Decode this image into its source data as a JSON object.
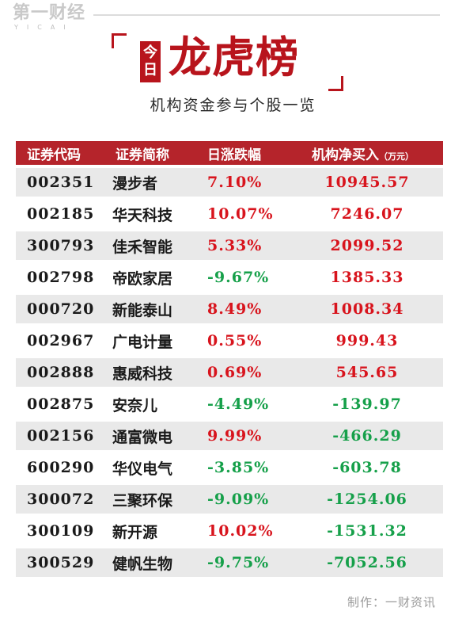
{
  "brand": {
    "name": "第一财经",
    "sub": "YICAI"
  },
  "header": {
    "badge_top": "今",
    "badge_bottom": "日",
    "title": "龙虎榜",
    "subtitle": "机构资金参与个股一览"
  },
  "table": {
    "columns": [
      "证券代码",
      "证券简称",
      "日涨跌幅",
      "机构净买入"
    ],
    "unit": "（万元）",
    "rows": [
      {
        "code": "002351",
        "name": "漫步者",
        "change": "7.10%",
        "net": "10945.57"
      },
      {
        "code": "002185",
        "name": "华天科技",
        "change": "10.07%",
        "net": "7246.07"
      },
      {
        "code": "300793",
        "name": "佳禾智能",
        "change": "5.33%",
        "net": "2099.52"
      },
      {
        "code": "002798",
        "name": "帝欧家居",
        "change": "-9.67%",
        "net": "1385.33"
      },
      {
        "code": "000720",
        "name": "新能泰山",
        "change": "8.49%",
        "net": "1008.34"
      },
      {
        "code": "002967",
        "name": "广电计量",
        "change": "0.55%",
        "net": "999.43"
      },
      {
        "code": "002888",
        "name": "惠威科技",
        "change": "0.69%",
        "net": "545.65"
      },
      {
        "code": "002875",
        "name": "安奈儿",
        "change": "-4.49%",
        "net": "-139.97"
      },
      {
        "code": "002156",
        "name": "通富微电",
        "change": "9.99%",
        "net": "-466.29"
      },
      {
        "code": "600290",
        "name": "华仪电气",
        "change": "-3.85%",
        "net": "-603.78"
      },
      {
        "code": "300072",
        "name": "三聚环保",
        "change": "-9.09%",
        "net": "-1254.06"
      },
      {
        "code": "300109",
        "name": "新开源",
        "change": "10.02%",
        "net": "-1531.32"
      },
      {
        "code": "300529",
        "name": "健帆生物",
        "change": "-9.75%",
        "net": "-7052.56"
      }
    ]
  },
  "colors": {
    "accent": "#b8141c",
    "header_bg": "#b5242b",
    "up": "#d8141d",
    "down": "#16a04a",
    "row_shade": "#e9e9e9"
  },
  "footer": {
    "credit": "制作：一财资讯"
  }
}
